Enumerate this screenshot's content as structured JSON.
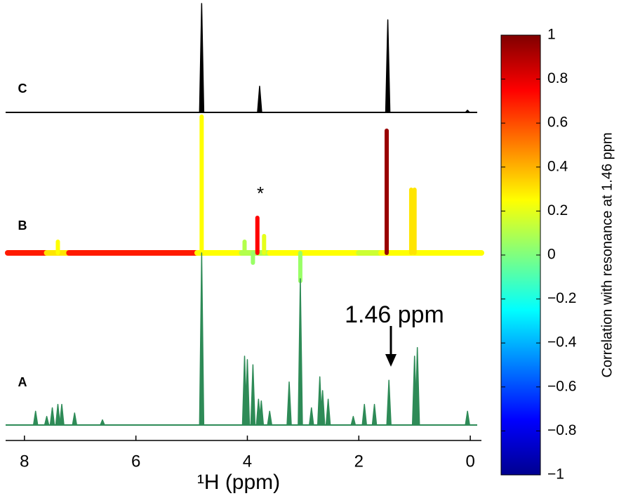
{
  "chart_data": {
    "type": "spectra",
    "x_label": "¹H (ppm)",
    "xlim": [
      8.3,
      -0.2
    ],
    "xticks": [
      8,
      6,
      4,
      2,
      0
    ],
    "annotations": {
      "arrow_label": "1.46 ppm",
      "star": "*"
    },
    "colorbar": {
      "label": "Correlation with resonance at 1.46 ppm",
      "clim": [
        -1,
        1
      ],
      "ticks": [
        {
          "value": -1,
          "label": "−1"
        },
        {
          "value": -0.8,
          "label": "−0.8"
        },
        {
          "value": -0.6,
          "label": "−0.6"
        },
        {
          "value": -0.4,
          "label": "−0.4"
        },
        {
          "value": -0.2,
          "label": "−0.2"
        },
        0,
        0.2,
        0.4,
        0.6,
        0.8,
        1
      ]
    },
    "series": [
      {
        "name": "C",
        "color": "#000000",
        "ylim": [
          0,
          100
        ],
        "x": [
          4.82,
          3.78,
          1.48,
          0.05
        ],
        "values": [
          100,
          24,
          85,
          2
        ]
      },
      {
        "name": "B",
        "ylim": [
          0,
          100
        ],
        "x": [
          7.4,
          4.82,
          4.05,
          3.9,
          3.82,
          3.7,
          3.05,
          1.5,
          1.06,
          1.0
        ],
        "values": [
          8,
          97,
          8,
          -7,
          25,
          12,
          -20,
          87,
          45,
          45
        ],
        "correlation": [
          0.25,
          0.25,
          0.1,
          0.05,
          0.75,
          0.2,
          0.05,
          0.95,
          0.3,
          0.3
        ],
        "band_edges": [
          8.3,
          7.6,
          7.2,
          4.9,
          4.1,
          3.6,
          2.0,
          1.6,
          -0.2
        ],
        "band_correlation": [
          0.7,
          0.3,
          0.7,
          0.25,
          0.1,
          0.25,
          0.15,
          0.25
        ]
      },
      {
        "name": "A",
        "color": "#2e8b57",
        "ylim": [
          0,
          100
        ],
        "x": [
          7.8,
          7.6,
          7.5,
          7.4,
          7.33,
          7.1,
          6.6,
          4.82,
          4.05,
          4.0,
          3.9,
          3.8,
          3.75,
          3.6,
          3.25,
          3.05,
          2.85,
          2.7,
          2.65,
          2.55,
          2.1,
          1.9,
          1.72,
          1.46,
          1.0,
          0.95,
          0.05
        ],
        "values": [
          8,
          5,
          10,
          12,
          12,
          7,
          3,
          100,
          40,
          38,
          35,
          15,
          14,
          8,
          25,
          85,
          10,
          28,
          20,
          15,
          5,
          12,
          12,
          26,
          40,
          45,
          8
        ]
      }
    ]
  }
}
